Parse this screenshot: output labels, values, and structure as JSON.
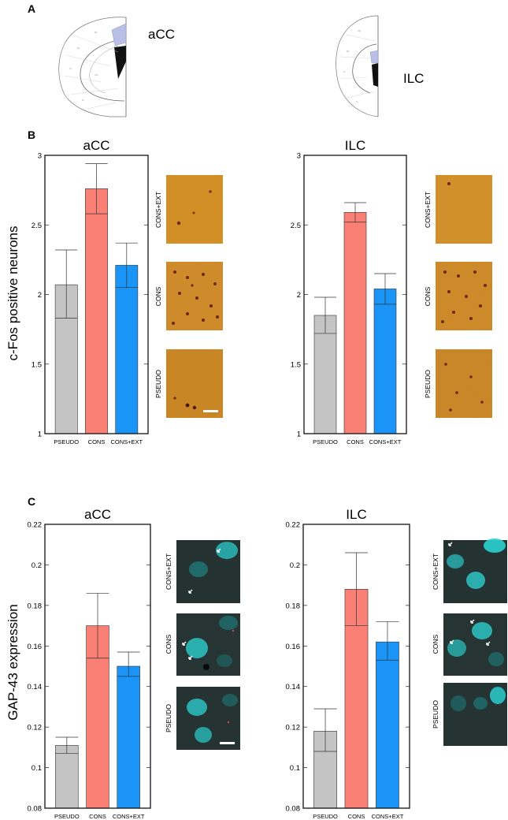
{
  "panels": {
    "a": "A",
    "b": "B",
    "c": "C"
  },
  "atlas": {
    "left_region": "aCC",
    "right_region": "ILC",
    "highlight_color": "#b8c0e6"
  },
  "micrograph_labels": {
    "cons_ext": "CONS+EXT",
    "cons": "CONS",
    "pseudo": "PSEUDO"
  },
  "y_labels": {
    "b": "c-Fos positive neurons",
    "c": "GAP-43 expression"
  },
  "colors": {
    "PSEUDO": "#c4c4c4",
    "CONS": "#fa8076",
    "CONS+EXT": "#1a94f7"
  },
  "chart_data": [
    {
      "id": "b_acc",
      "type": "bar",
      "title": "aCC",
      "categories": [
        "PSEUDO",
        "CONS",
        "CONS+EXT"
      ],
      "values": [
        2.07,
        2.76,
        2.21
      ],
      "error": [
        [
          1.83,
          2.32
        ],
        [
          2.58,
          2.94
        ],
        [
          2.05,
          2.37
        ]
      ],
      "ylim": [
        1,
        3
      ],
      "yticks": [
        "1",
        "1.5",
        "2",
        "2.5",
        "3"
      ],
      "yticks_values": [
        1,
        1.5,
        2,
        2.5,
        3
      ],
      "ylabel": "c-Fos positive neurons"
    },
    {
      "id": "b_ilc",
      "type": "bar",
      "title": "ILC",
      "categories": [
        "PSEUDO",
        "CONS",
        "CONS+EXT"
      ],
      "values": [
        1.85,
        2.59,
        2.04
      ],
      "error": [
        [
          1.72,
          1.98
        ],
        [
          2.52,
          2.66
        ],
        [
          1.93,
          2.15
        ]
      ],
      "ylim": [
        1,
        3
      ],
      "yticks": [
        "1",
        "1.5",
        "2",
        "2.5",
        "3"
      ],
      "yticks_values": [
        1,
        1.5,
        2,
        2.5,
        3
      ],
      "ylabel": ""
    },
    {
      "id": "c_acc",
      "type": "bar",
      "title": "aCC",
      "categories": [
        "PSEUDO",
        "CONS",
        "CONS+EXT"
      ],
      "values": [
        0.111,
        0.17,
        0.15
      ],
      "error": [
        [
          0.107,
          0.115
        ],
        [
          0.154,
          0.186
        ],
        [
          0.145,
          0.157
        ]
      ],
      "ylim": [
        0.08,
        0.22
      ],
      "yticks": [
        "0.08",
        "0.1",
        "0.12",
        "0.14",
        "0.16",
        "0.18",
        "0.2",
        "0.22"
      ],
      "yticks_values": [
        0.08,
        0.1,
        0.12,
        0.14,
        0.16,
        0.18,
        0.2,
        0.22
      ],
      "ylabel": "GAP-43 expression"
    },
    {
      "id": "c_ilc",
      "type": "bar",
      "title": "ILC",
      "categories": [
        "PSEUDO",
        "CONS",
        "CONS+EXT"
      ],
      "values": [
        0.118,
        0.188,
        0.162
      ],
      "error": [
        [
          0.108,
          0.129
        ],
        [
          0.17,
          0.206
        ],
        [
          0.153,
          0.172
        ]
      ],
      "ylim": [
        0.08,
        0.22
      ],
      "yticks": [
        "0.08",
        "0.1",
        "0.12",
        "0.14",
        "0.16",
        "0.18",
        "0.2",
        "0.22"
      ],
      "yticks_values": [
        0.08,
        0.1,
        0.12,
        0.14,
        0.16,
        0.18,
        0.2,
        0.22
      ],
      "ylabel": ""
    }
  ]
}
